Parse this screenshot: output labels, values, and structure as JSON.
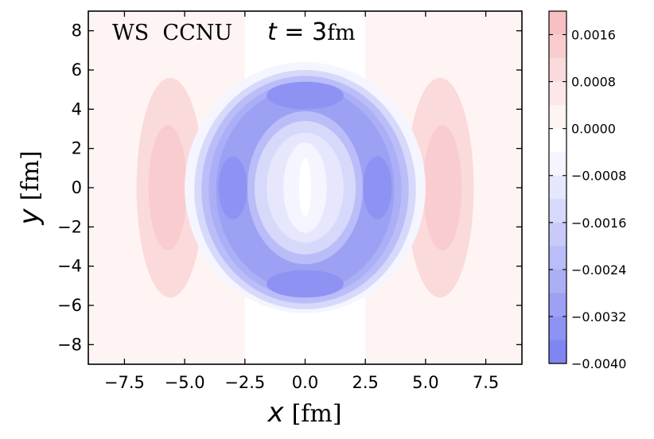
{
  "chart_data": {
    "type": "heatmap",
    "annotation": {
      "label": "WS  CCNU",
      "time_var": "t",
      "time_eq": " = 3",
      "time_unit": "fm"
    },
    "xlabel": {
      "var": "x",
      "unit": "[fm]"
    },
    "ylabel": {
      "var": "y",
      "unit": "[fm]"
    },
    "xlim": [
      -9,
      9
    ],
    "ylim": [
      -9,
      9
    ],
    "xticks": [
      -7.5,
      -5.0,
      -2.5,
      0.0,
      2.5,
      5.0,
      7.5
    ],
    "xtick_labels": [
      "−7.5",
      "−5.0",
      "−2.5",
      "0.0",
      "2.5",
      "5.0",
      "7.5"
    ],
    "yticks": [
      -8,
      -6,
      -4,
      -2,
      0,
      2,
      4,
      6,
      8
    ],
    "ytick_labels": [
      "−8",
      "−6",
      "−4",
      "−2",
      "0",
      "2",
      "4",
      "6",
      "8"
    ],
    "colorbar": {
      "vmin": -0.004,
      "vmax": 0.002,
      "ticks": [
        0.0016,
        0.0008,
        0.0,
        -0.0008,
        -0.0016,
        -0.0024,
        -0.0032,
        -0.004
      ],
      "tick_labels": [
        "0.0016",
        "0.0008",
        "0.0000",
        "−0.0008",
        "−0.0016",
        "−0.0024",
        "−0.0032",
        "−0.0040"
      ],
      "levels": [
        {
          "from": 0.0016,
          "to": 0.002,
          "color": "#f8c0c2"
        },
        {
          "from": 0.0012,
          "to": 0.0016,
          "color": "#f9cdcf"
        },
        {
          "from": 0.0008,
          "to": 0.0012,
          "color": "#fbdadc"
        },
        {
          "from": 0.0004,
          "to": 0.0008,
          "color": "#fce8e9"
        },
        {
          "from": 0.0,
          "to": 0.0004,
          "color": "#fef4f4"
        },
        {
          "from": -0.0004,
          "to": 0.0,
          "color": "#ffffff"
        },
        {
          "from": -0.0008,
          "to": -0.0004,
          "color": "#f4f5fe"
        },
        {
          "from": -0.0012,
          "to": -0.0008,
          "color": "#e6e7fd"
        },
        {
          "from": -0.0016,
          "to": -0.0012,
          "color": "#d7d9fb"
        },
        {
          "from": -0.002,
          "to": -0.0016,
          "color": "#c8cbf9"
        },
        {
          "from": -0.0024,
          "to": -0.002,
          "color": "#babdf8"
        },
        {
          "from": -0.0028,
          "to": -0.0024,
          "color": "#abaff6"
        },
        {
          "from": -0.0032,
          "to": -0.0028,
          "color": "#9ca1f4"
        },
        {
          "from": -0.0036,
          "to": -0.0032,
          "color": "#8e93f3"
        },
        {
          "from": -0.004,
          "to": -0.0036,
          "color": "#7f85f1"
        }
      ]
    },
    "field_regions": [
      {
        "shape": "rect",
        "x0": -9,
        "x1": 9,
        "y0": -9,
        "y1": 9,
        "value": 0.0002
      },
      {
        "shape": "rect",
        "x0": -2.5,
        "x1": 2.5,
        "y0": -9,
        "y1": 9,
        "value": -0.0002
      },
      {
        "shape": "ellipse",
        "cx": -5.6,
        "cy": 0,
        "rx": 1.4,
        "ry": 5.6,
        "value": 0.0008
      },
      {
        "shape": "ellipse",
        "cx": 5.6,
        "cy": 0,
        "rx": 1.4,
        "ry": 5.6,
        "value": 0.0008
      },
      {
        "shape": "ellipse",
        "cx": -5.7,
        "cy": 0,
        "rx": 0.8,
        "ry": 3.2,
        "value": 0.0012
      },
      {
        "shape": "ellipse",
        "cx": 5.7,
        "cy": 0,
        "rx": 0.8,
        "ry": 3.2,
        "value": 0.0012
      },
      {
        "shape": "ellipse",
        "cx": 0,
        "cy": 0,
        "rx": 5.0,
        "ry": 6.4,
        "value": -0.0006
      },
      {
        "shape": "ellipse",
        "cx": 0,
        "cy": -0.1,
        "rx": 4.6,
        "ry": 6.1,
        "value": -0.0014
      },
      {
        "shape": "ellipse",
        "cx": 0,
        "cy": -0.1,
        "rx": 4.3,
        "ry": 5.8,
        "value": -0.0022
      },
      {
        "shape": "ellipse",
        "cx": 0,
        "cy": -0.1,
        "rx": 4.0,
        "ry": 5.5,
        "value": -0.0026
      },
      {
        "shape": "ellipse",
        "cx": 0,
        "cy": -0.1,
        "rx": 3.7,
        "ry": 5.2,
        "value": -0.003
      },
      {
        "shape": "ellipse",
        "cx": -3.0,
        "cy": 0,
        "rx": 0.6,
        "ry": 1.6,
        "value": -0.0034
      },
      {
        "shape": "ellipse",
        "cx": 3.0,
        "cy": 0,
        "rx": 0.6,
        "ry": 1.6,
        "value": -0.0034
      },
      {
        "shape": "ellipse",
        "cx": 0,
        "cy": 4.7,
        "rx": 1.6,
        "ry": 0.7,
        "value": -0.0034
      },
      {
        "shape": "ellipse",
        "cx": 0,
        "cy": -4.9,
        "rx": 1.6,
        "ry": 0.7,
        "value": -0.0034
      },
      {
        "shape": "ellipse",
        "cx": 0,
        "cy": 0,
        "rx": 2.4,
        "ry": 3.9,
        "value": -0.0022
      },
      {
        "shape": "ellipse",
        "cx": 0,
        "cy": 0,
        "rx": 2.1,
        "ry": 3.4,
        "value": -0.0014
      },
      {
        "shape": "ellipse",
        "cx": 0,
        "cy": 0,
        "rx": 1.6,
        "ry": 2.8,
        "value": -0.001
      },
      {
        "shape": "ellipse",
        "cx": 0,
        "cy": 0,
        "rx": 0.9,
        "ry": 2.3,
        "value": -0.0006
      },
      {
        "shape": "ellipse",
        "cx": 0,
        "cy": 0,
        "rx": 0.25,
        "ry": 1.5,
        "value": -0.0002
      }
    ]
  }
}
